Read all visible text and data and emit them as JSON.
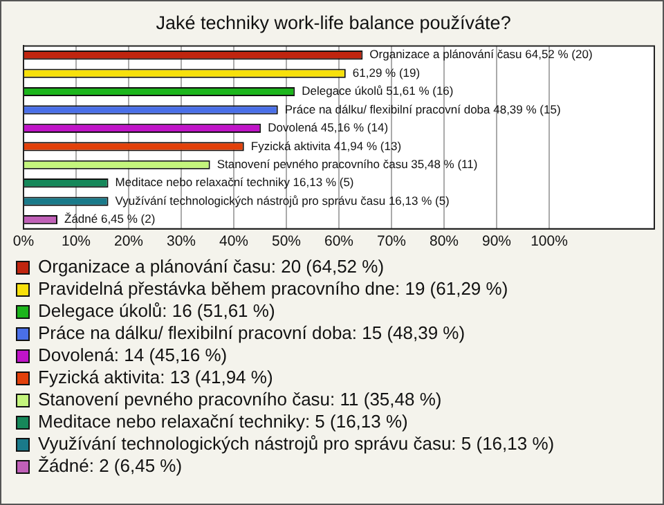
{
  "chart_data": {
    "type": "bar",
    "orientation": "horizontal",
    "title": "Jaké techniky work-life balance používáte?",
    "categories": [
      null,
      null,
      null,
      null,
      null,
      null,
      null,
      null,
      null,
      null
    ],
    "series": [
      {
        "name": "Organizace a plánování času: 20 (64,52 %)",
        "color": "#c0250f",
        "values": [
          64.52,
          null,
          null,
          null,
          null,
          null,
          null,
          null,
          null,
          null
        ],
        "value_labels": [
          "Organizace a plánování času 64,52 % (20)",
          null,
          null,
          null,
          null,
          null,
          null,
          null,
          null,
          null
        ]
      },
      {
        "name": "Pravidelná přestávka během pracovního dne: 19 (61,29 %)",
        "color": "#f7e00a",
        "values": [
          null,
          61.29,
          null,
          null,
          null,
          null,
          null,
          null,
          null,
          null
        ],
        "value_labels": [
          null,
          "61,29 % (19)",
          null,
          null,
          null,
          null,
          null,
          null,
          null,
          null
        ]
      },
      {
        "name": "Delegace úkolů: 16 (51,61 %)",
        "color": "#1cb51c",
        "values": [
          null,
          null,
          51.61,
          null,
          null,
          null,
          null,
          null,
          null,
          null
        ],
        "value_labels": [
          null,
          null,
          "Delegace úkolů 51,61 % (16)",
          null,
          null,
          null,
          null,
          null,
          null,
          null
        ]
      },
      {
        "name": "Práce na dálku/ flexibilní pracovní doba: 15 (48,39 %)",
        "color": "#4a6fe8",
        "values": [
          null,
          null,
          null,
          48.39,
          null,
          null,
          null,
          null,
          null,
          null
        ],
        "value_labels": [
          null,
          null,
          null,
          "Práce na dálku/ flexibilní pracovní doba 48,39 % (15)",
          null,
          null,
          null,
          null,
          null,
          null
        ]
      },
      {
        "name": "Dovolená: 14 (45,16 %)",
        "color": "#c014c8",
        "values": [
          null,
          null,
          null,
          null,
          45.16,
          null,
          null,
          null,
          null,
          null
        ],
        "value_labels": [
          null,
          null,
          null,
          null,
          "Dovolená 45,16 % (14)",
          null,
          null,
          null,
          null,
          null
        ]
      },
      {
        "name": "Fyzická aktivita: 13 (41,94 %)",
        "color": "#e2400a",
        "values": [
          null,
          null,
          null,
          null,
          null,
          41.94,
          null,
          null,
          null,
          null
        ],
        "value_labels": [
          null,
          null,
          null,
          null,
          null,
          "Fyzická aktivita 41,94 % (13)",
          null,
          null,
          null,
          null
        ]
      },
      {
        "name": "Stanovení pevného pracovního času: 11 (35,48 %)",
        "color": "#c4f57c",
        "values": [
          null,
          null,
          null,
          null,
          null,
          null,
          35.48,
          null,
          null,
          null
        ],
        "value_labels": [
          null,
          null,
          null,
          null,
          null,
          null,
          "Stanovení pevného pracovního času 35,48 % (11)",
          null,
          null,
          null
        ]
      },
      {
        "name": "Meditace nebo relaxační techniky: 5 (16,13 %)",
        "color": "#16885a",
        "values": [
          null,
          null,
          null,
          null,
          null,
          null,
          null,
          16.13,
          null,
          null
        ],
        "value_labels": [
          null,
          null,
          null,
          null,
          null,
          null,
          null,
          "Meditace nebo relaxační techniky 16,13 % (5)",
          null,
          null
        ]
      },
      {
        "name": "Využívání technologických nástrojů pro správu času: 5 (16,13 %)",
        "color": "#1a7a8a",
        "values": [
          null,
          null,
          null,
          null,
          null,
          null,
          null,
          null,
          16.13,
          null
        ],
        "value_labels": [
          null,
          null,
          null,
          null,
          null,
          null,
          null,
          null,
          "Využívání technologických nástrojů pro správu času 16,13 % (5)",
          null
        ]
      },
      {
        "name": "Žádné: 2 (6,45 %)",
        "color": "#c060b8",
        "values": [
          null,
          null,
          null,
          null,
          null,
          null,
          null,
          null,
          null,
          6.45
        ],
        "value_labels": [
          null,
          null,
          null,
          null,
          null,
          null,
          null,
          null,
          null,
          "Žádné 6,45 % (2)"
        ]
      }
    ],
    "xlim": [
      0,
      120
    ],
    "xticks": [
      {
        "value": 0,
        "label": "0%"
      },
      {
        "value": 10,
        "label": "10%"
      },
      {
        "value": 20,
        "label": "20%"
      },
      {
        "value": 30,
        "label": "30%"
      },
      {
        "value": 40,
        "label": "40%"
      },
      {
        "value": 50,
        "label": "50%"
      },
      {
        "value": 60,
        "label": "60%"
      },
      {
        "value": 70,
        "label": "70%"
      },
      {
        "value": 80,
        "label": "80%"
      },
      {
        "value": 90,
        "label": "90%"
      },
      {
        "value": 100,
        "label": "100%"
      },
      {
        "value": 120,
        "label": null
      }
    ],
    "grid": "x",
    "legend": "bottom",
    "tick_labels": "x"
  }
}
